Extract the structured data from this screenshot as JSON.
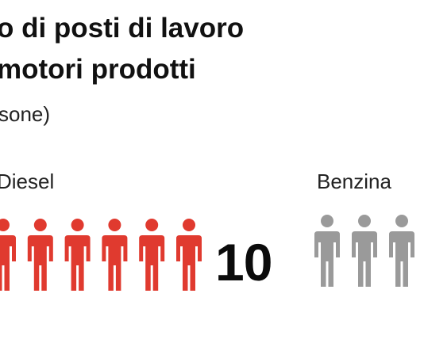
{
  "header": {
    "title_line_1": "o di posti di lavoro",
    "title_line_2": "motori prodotti",
    "subtitle": "sone)"
  },
  "colors": {
    "diesel": "#e03a2f",
    "benzina": "#9a9a9a"
  },
  "chart_data": {
    "type": "pictogram",
    "categories": [
      "Diesel",
      "Benzina"
    ],
    "values": [
      10,
      null
    ],
    "value_labels": [
      "10",
      ""
    ],
    "visible_icons": [
      6,
      3
    ],
    "icon": "person-icon",
    "legend": "none",
    "grid": false
  }
}
